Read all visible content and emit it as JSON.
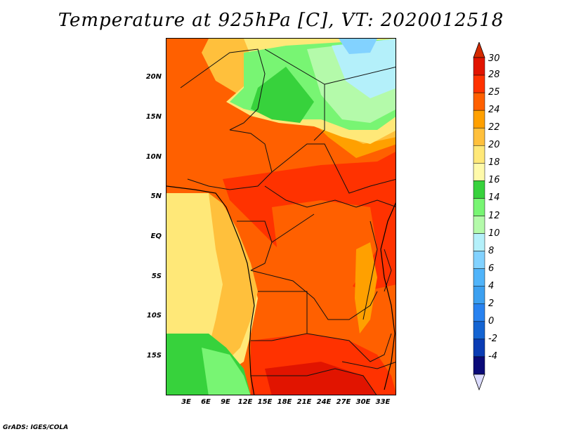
{
  "title": "Temperature at 925hPa [C], VT: 2020012518",
  "credit": "GrADS: IGES/COLA",
  "map": {
    "lat_range": [
      -20,
      25
    ],
    "lon_range": [
      0,
      35
    ],
    "lat_labels": [
      {
        "value": 20,
        "text": "20N"
      },
      {
        "value": 15,
        "text": "15N"
      },
      {
        "value": 10,
        "text": "10N"
      },
      {
        "value": 5,
        "text": "5N"
      },
      {
        "value": 0,
        "text": "EQ"
      },
      {
        "value": -5,
        "text": "5S"
      },
      {
        "value": -10,
        "text": "10S"
      },
      {
        "value": -15,
        "text": "15S"
      }
    ],
    "lon_labels": [
      {
        "value": 3,
        "text": "3E"
      },
      {
        "value": 6,
        "text": "6E"
      },
      {
        "value": 9,
        "text": "9E"
      },
      {
        "value": 12,
        "text": "12E"
      },
      {
        "value": 15,
        "text": "15E"
      },
      {
        "value": 18,
        "text": "18E"
      },
      {
        "value": 21,
        "text": "21E"
      },
      {
        "value": 24,
        "text": "24E"
      },
      {
        "value": 27,
        "text": "27E"
      },
      {
        "value": 30,
        "text": "30E"
      },
      {
        "value": 33,
        "text": "33E"
      }
    ]
  },
  "colorbar": {
    "min_arrow_color": "#dcdcff",
    "max_arrow_color": "#d42a00",
    "levels": [
      {
        "label": "-4",
        "color": "#0a0a78"
      },
      {
        "label": "-2",
        "color": "#0a3cb4"
      },
      {
        "label": "0",
        "color": "#1464d2"
      },
      {
        "label": "2",
        "color": "#2882f0"
      },
      {
        "label": "4",
        "color": "#3ca0f0"
      },
      {
        "label": "6",
        "color": "#50b4fa"
      },
      {
        "label": "8",
        "color": "#82d2ff"
      },
      {
        "label": "10",
        "color": "#b4f0fa"
      },
      {
        "label": "12",
        "color": "#b4faaa"
      },
      {
        "label": "14",
        "color": "#78f573"
      },
      {
        "label": "16",
        "color": "#37d23c"
      },
      {
        "label": "18",
        "color": "#fffaaa"
      },
      {
        "label": "20",
        "color": "#ffe878"
      },
      {
        "label": "22",
        "color": "#ffc03c"
      },
      {
        "label": "24",
        "color": "#ffa000"
      },
      {
        "label": "25",
        "color": "#ff6000"
      },
      {
        "label": "28",
        "color": "#ff3200"
      },
      {
        "label": "30",
        "color": "#e11400"
      }
    ]
  }
}
